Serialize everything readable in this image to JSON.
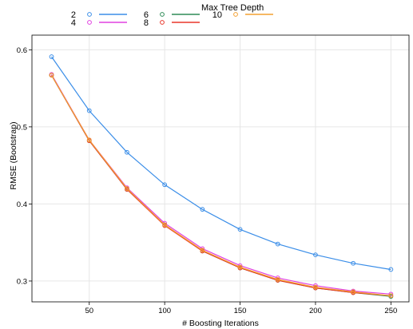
{
  "chart_data": {
    "type": "line",
    "title": "",
    "xlabel": "# Boosting Iterations",
    "ylabel": "RMSE (Bootstrap)",
    "xlim": [
      12,
      262
    ],
    "ylim": [
      0.273,
      0.619
    ],
    "xticks": [
      50,
      100,
      150,
      200,
      250
    ],
    "yticks": [
      0.3,
      0.4,
      0.5,
      0.6
    ],
    "xtick_labels": [
      "50",
      "100",
      "150",
      "200",
      "250"
    ],
    "ytick_labels": [
      "0.3",
      "0.4",
      "0.5",
      "0.6"
    ],
    "grid": true,
    "legend": {
      "title": "Max Tree Depth",
      "placement": "top"
    },
    "x": [
      25,
      50,
      75,
      100,
      125,
      150,
      175,
      200,
      225,
      250
    ],
    "series": [
      {
        "name": "2",
        "color": "#3b8ee8",
        "values": [
          0.591,
          0.521,
          0.467,
          0.425,
          0.393,
          0.367,
          0.348,
          0.334,
          0.323,
          0.315
        ]
      },
      {
        "name": "4",
        "color": "#e040e0",
        "values": [
          0.568,
          0.483,
          0.421,
          0.375,
          0.342,
          0.32,
          0.304,
          0.294,
          0.287,
          0.283
        ]
      },
      {
        "name": "6",
        "color": "#2e8b57",
        "values": [
          0.567,
          0.482,
          0.419,
          0.373,
          0.339,
          0.317,
          0.301,
          0.291,
          0.285,
          0.28
        ]
      },
      {
        "name": "8",
        "color": "#e8362a",
        "values": [
          0.567,
          0.482,
          0.419,
          0.372,
          0.339,
          0.317,
          0.301,
          0.291,
          0.285,
          0.281
        ]
      },
      {
        "name": "10",
        "color": "#f4a030",
        "values": [
          0.567,
          0.483,
          0.42,
          0.373,
          0.34,
          0.318,
          0.302,
          0.292,
          0.286,
          0.281
        ]
      }
    ]
  }
}
